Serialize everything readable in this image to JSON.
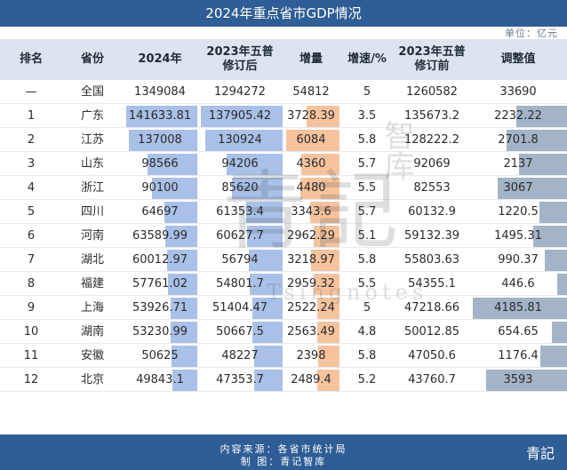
{
  "title": "2024年重点省市GDP情况",
  "unit": "单位：亿元",
  "headers": [
    "排名",
    "省份",
    "2024年",
    "2023年五普\n修订后",
    "增量",
    "增速/%",
    "2023年五普\n修订前",
    "调整值"
  ],
  "rows": [
    [
      "—",
      "全国",
      "1349084",
      "1294272",
      "54812",
      "5",
      "1260582",
      "33690"
    ],
    [
      "1",
      "广东",
      "141633.81",
      "137905.42",
      "3728.39",
      "3.5",
      "135673.2",
      "2232.22"
    ],
    [
      "2",
      "江苏",
      "137008",
      "130924",
      "6084",
      "5.8",
      "128222.2",
      "2701.8"
    ],
    [
      "3",
      "山东",
      "98566",
      "94206",
      "4360",
      "5.7",
      "92069",
      "2137"
    ],
    [
      "4",
      "浙江",
      "90100",
      "85620",
      "4480",
      "5.5",
      "82553",
      "3067"
    ],
    [
      "5",
      "四川",
      "64697",
      "61353.4",
      "3343.6",
      "5.7",
      "60132.9",
      "1220.5"
    ],
    [
      "6",
      "河南",
      "63589.99",
      "60627.7",
      "2962.29",
      "5.1",
      "59132.39",
      "1495.31"
    ],
    [
      "7",
      "湖北",
      "60012.97",
      "56794",
      "3218.97",
      "5.8",
      "55803.63",
      "990.37"
    ],
    [
      "8",
      "福建",
      "57761.02",
      "54801.7",
      "2959.32",
      "5.5",
      "54355.1",
      "446.6"
    ],
    [
      "9",
      "上海",
      "53926.71",
      "51404.47",
      "2522.24",
      "5",
      "47218.66",
      "4185.81"
    ],
    [
      "10",
      "湖南",
      "53230.99",
      "50667.5",
      "2563.49",
      "4.8",
      "50012.85",
      "654.65"
    ],
    [
      "11",
      "安徽",
      "50625",
      "48227",
      "2398",
      "5.8",
      "47050.6",
      "1176.4"
    ],
    [
      "12",
      "北京",
      "49843.1",
      "47353.7",
      "2489.4",
      "5.2",
      "43760.7",
      "3593"
    ]
  ],
  "footer": {
    "source": "内容来源：各省市统计局",
    "maker": "制    图：青记智库",
    "logo": "青記"
  },
  "watermark": {
    "main": "青記",
    "side": "智库",
    "latin": "Tsingnotes"
  },
  "colors": {
    "header_bg": "#2f5d95",
    "bar_blue": "#a9c0e8",
    "bar_orange": "#f6c39d",
    "bar_gray": "#a3b4c6"
  }
}
